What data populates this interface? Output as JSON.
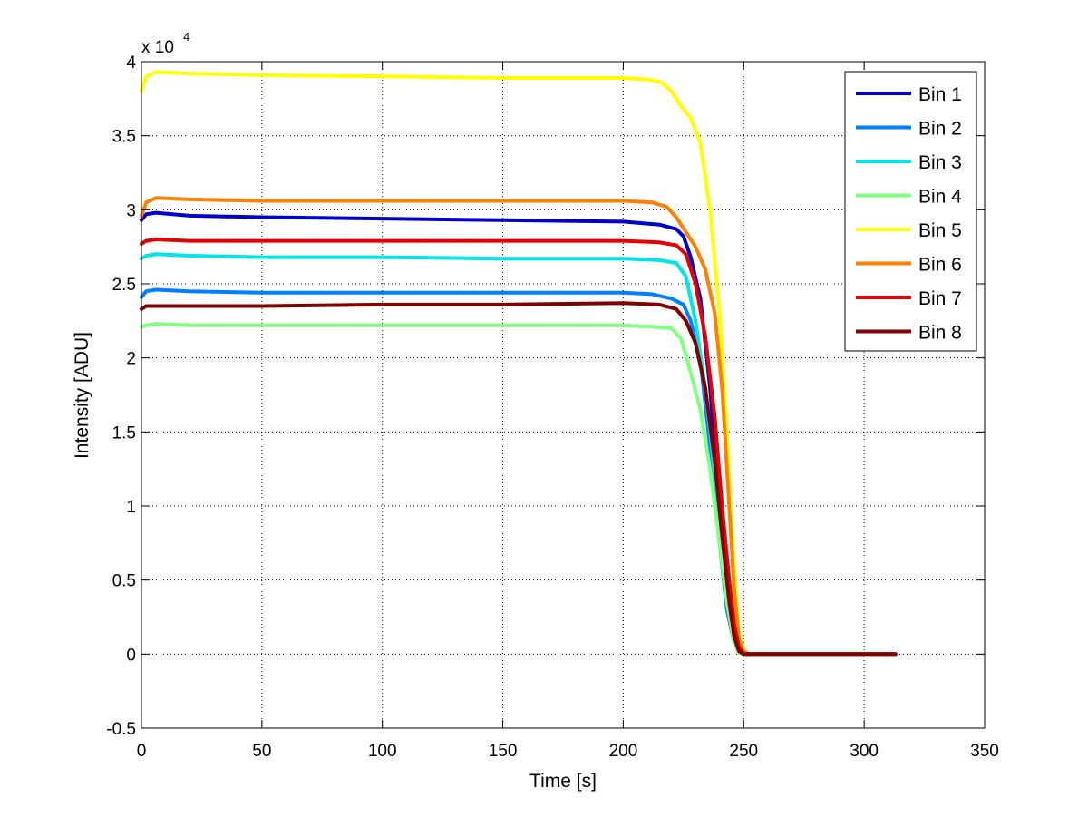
{
  "chart_data": {
    "type": "line",
    "xlabel": "Time [s]",
    "ylabel": "Intensity [ADU]",
    "y_multiplier_base": "x 10",
    "y_multiplier_exponent": "4",
    "xlim": [
      0,
      350
    ],
    "ylim": [
      -0.5,
      4
    ],
    "x_ticks": [
      0,
      50,
      100,
      150,
      200,
      250,
      300,
      350
    ],
    "x_tick_labels": [
      "0",
      "50",
      "100",
      "150",
      "200",
      "250",
      "300",
      "350"
    ],
    "y_ticks": [
      -0.5,
      0,
      0.5,
      1,
      1.5,
      2,
      2.5,
      3,
      3.5,
      4
    ],
    "y_tick_labels": [
      "-0.5",
      "0",
      "0.5",
      "1",
      "1.5",
      "2",
      "2.5",
      "3",
      "3.5",
      "4"
    ],
    "grid": true,
    "legend_position": "top-right",
    "series": [
      {
        "name": "Bin 1",
        "color": "#0000cc",
        "x": [
          0,
          2,
          6,
          20,
          50,
          100,
          150,
          200,
          215,
          222,
          225,
          228,
          232,
          236,
          240,
          244,
          247,
          249,
          251,
          260,
          313
        ],
        "y": [
          2.93,
          2.97,
          2.98,
          2.96,
          2.95,
          2.94,
          2.93,
          2.92,
          2.9,
          2.87,
          2.82,
          2.68,
          2.4,
          1.8,
          1.0,
          0.45,
          0.12,
          0.02,
          0,
          0,
          0
        ]
      },
      {
        "name": "Bin 2",
        "color": "#0080ff",
        "x": [
          0,
          2,
          6,
          20,
          50,
          100,
          150,
          200,
          212,
          220,
          225,
          228,
          232,
          236,
          240,
          243,
          246,
          248,
          250,
          260,
          313
        ],
        "y": [
          2.41,
          2.45,
          2.46,
          2.45,
          2.44,
          2.44,
          2.44,
          2.44,
          2.43,
          2.4,
          2.36,
          2.25,
          1.98,
          1.4,
          0.75,
          0.3,
          0.08,
          0.01,
          0,
          0,
          0
        ]
      },
      {
        "name": "Bin 3",
        "color": "#00e5e5",
        "x": [
          0,
          2,
          6,
          20,
          50,
          100,
          150,
          200,
          215,
          222,
          226,
          230,
          234,
          238,
          241,
          244,
          247,
          249,
          251,
          260,
          313
        ],
        "y": [
          2.67,
          2.69,
          2.7,
          2.69,
          2.68,
          2.68,
          2.67,
          2.67,
          2.66,
          2.64,
          2.55,
          2.25,
          1.8,
          1.2,
          0.7,
          0.3,
          0.08,
          0.01,
          0,
          0,
          0
        ]
      },
      {
        "name": "Bin 4",
        "color": "#80ff80",
        "x": [
          0,
          2,
          6,
          20,
          50,
          100,
          150,
          200,
          212,
          220,
          224,
          228,
          232,
          236,
          240,
          243,
          246,
          248,
          250,
          260,
          313
        ],
        "y": [
          2.21,
          2.22,
          2.23,
          2.22,
          2.22,
          2.22,
          2.22,
          2.22,
          2.21,
          2.2,
          2.13,
          1.9,
          1.65,
          1.25,
          0.75,
          0.35,
          0.08,
          0.01,
          0,
          0,
          0
        ]
      },
      {
        "name": "Bin 5",
        "color": "#ffff00",
        "x": [
          0,
          2,
          6,
          20,
          50,
          100,
          150,
          200,
          210,
          216,
          220,
          224,
          228,
          232,
          236,
          240,
          243,
          246,
          248,
          250,
          252,
          260,
          313
        ],
        "y": [
          3.8,
          3.9,
          3.93,
          3.92,
          3.91,
          3.9,
          3.89,
          3.89,
          3.88,
          3.86,
          3.8,
          3.7,
          3.62,
          3.45,
          3.0,
          2.3,
          1.5,
          0.6,
          0.15,
          0.02,
          0,
          0,
          0
        ]
      },
      {
        "name": "Bin 6",
        "color": "#ff8000",
        "x": [
          0,
          2,
          6,
          20,
          50,
          100,
          150,
          200,
          212,
          218,
          222,
          226,
          230,
          234,
          238,
          241,
          244,
          246,
          248,
          250,
          252,
          260,
          313
        ],
        "y": [
          2.96,
          3.05,
          3.08,
          3.07,
          3.06,
          3.06,
          3.06,
          3.06,
          3.05,
          3.02,
          2.95,
          2.85,
          2.75,
          2.6,
          2.3,
          1.8,
          1.0,
          0.45,
          0.1,
          0.02,
          0,
          0,
          0
        ]
      },
      {
        "name": "Bin 7",
        "color": "#e60000",
        "x": [
          0,
          2,
          6,
          20,
          50,
          100,
          150,
          200,
          215,
          222,
          226,
          230,
          234,
          238,
          241,
          244,
          246,
          248,
          250,
          260,
          313
        ],
        "y": [
          2.77,
          2.79,
          2.8,
          2.79,
          2.79,
          2.79,
          2.79,
          2.79,
          2.78,
          2.76,
          2.7,
          2.5,
          2.15,
          1.6,
          1.0,
          0.5,
          0.2,
          0.05,
          0,
          0,
          0
        ]
      },
      {
        "name": "Bin 8",
        "color": "#800000",
        "x": [
          0,
          2,
          6,
          20,
          50,
          100,
          150,
          200,
          215,
          222,
          226,
          230,
          234,
          238,
          241,
          244,
          246,
          248,
          250,
          260,
          313
        ],
        "y": [
          2.33,
          2.35,
          2.35,
          2.35,
          2.35,
          2.36,
          2.36,
          2.37,
          2.36,
          2.33,
          2.25,
          2.1,
          1.8,
          1.3,
          0.8,
          0.35,
          0.12,
          0.02,
          0,
          0,
          0
        ]
      }
    ]
  }
}
